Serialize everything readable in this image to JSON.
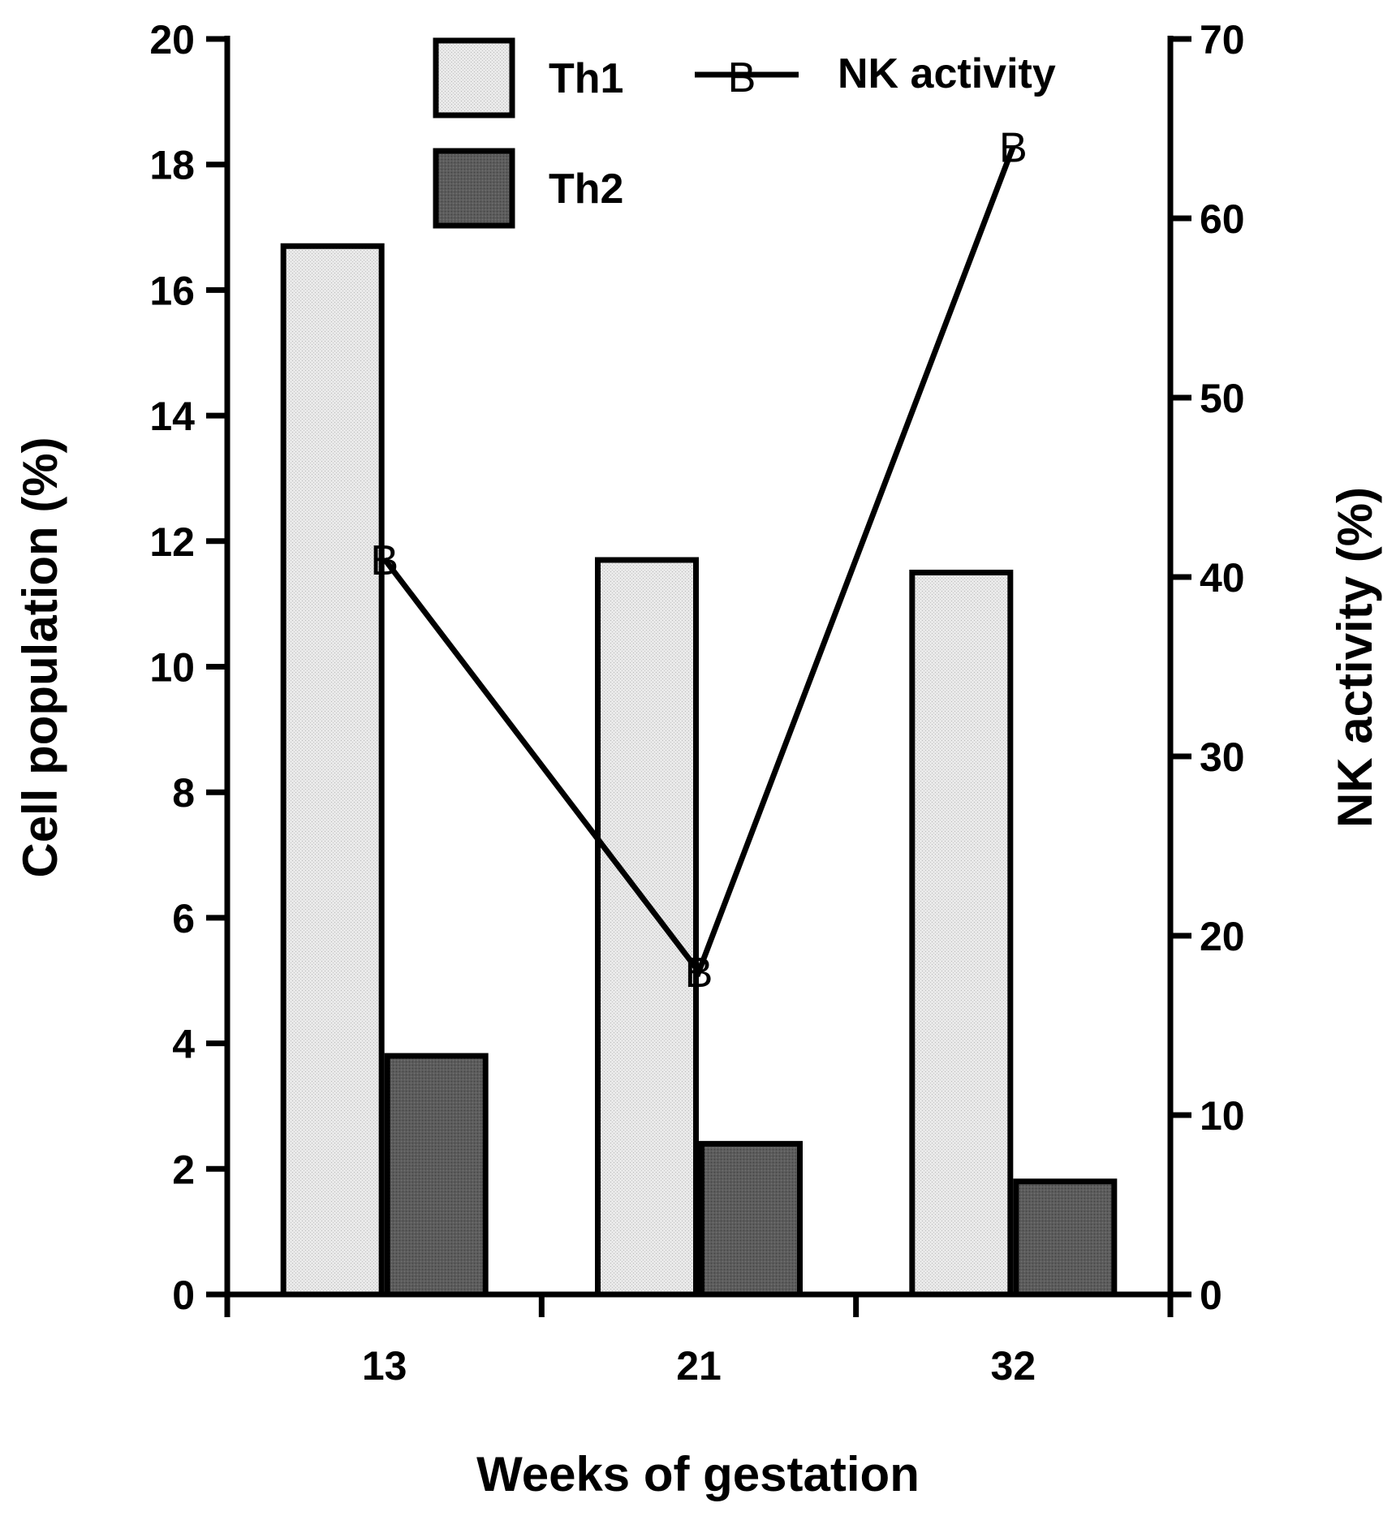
{
  "chart_data": {
    "type": "bar",
    "categories": [
      "13",
      "21",
      "32"
    ],
    "xlabel": "Weeks of gestation",
    "ylabel": "Cell population (%)",
    "ylabel_right": "NK activity (%)",
    "ylim": [
      0,
      20
    ],
    "ylim_right": [
      0,
      70
    ],
    "yticks": [
      0,
      2,
      4,
      6,
      8,
      10,
      12,
      14,
      16,
      18,
      20
    ],
    "yticks_right": [
      0,
      10,
      20,
      30,
      40,
      50,
      60,
      70
    ],
    "grid": false,
    "legend_placement": "top",
    "series": [
      {
        "name": "Th1",
        "kind": "bar",
        "axis": "left",
        "values": [
          16.7,
          11.7,
          11.5
        ],
        "color": "#e4e4e4"
      },
      {
        "name": "Th2",
        "kind": "bar",
        "axis": "left",
        "values": [
          3.8,
          2.4,
          1.8
        ],
        "color": "#555555"
      },
      {
        "name": "NK activity",
        "kind": "line",
        "axis": "right",
        "marker": "B",
        "values": [
          41,
          18,
          64
        ],
        "color": "#000000"
      }
    ]
  }
}
